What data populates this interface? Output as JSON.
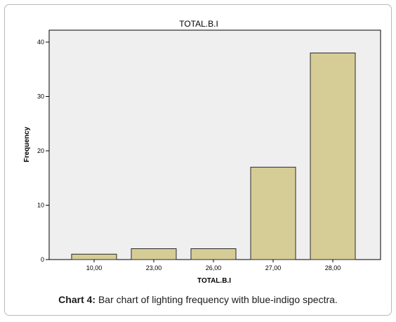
{
  "chart_data": {
    "type": "bar",
    "title": "TOTAL.B.I",
    "xlabel": "TOTAL.B.I",
    "ylabel": "Frequency",
    "categories": [
      "10,00",
      "23,00",
      "26,00",
      "27,00",
      "28,00"
    ],
    "values": [
      1,
      2,
      2,
      17,
      38
    ],
    "ylim": [
      0,
      40
    ],
    "yticks": [
      "0",
      "10",
      "20",
      "30",
      "40"
    ],
    "grid": false,
    "legend": "none",
    "colors": {
      "bar_fill": "#d6cd96",
      "bar_stroke": "#2a2a2a",
      "plot_background": "#efefef",
      "axis": "#000000"
    }
  },
  "caption": {
    "lead": "Chart 4:",
    "text": " Bar chart of lighting frequency with blue-indigo spectra."
  }
}
